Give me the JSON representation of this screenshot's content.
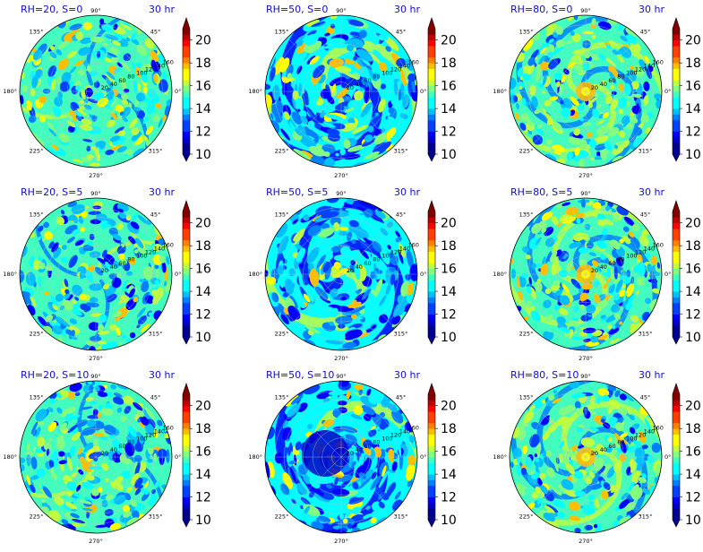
{
  "chart_data": {
    "type": "heatmap",
    "subtype": "polar filled contour",
    "layout": "3 x 3 grid of polar panels, each with its own vertical colorbar",
    "colormap": "jet",
    "colorbar": {
      "min": 10,
      "max": 21,
      "step": 0.5,
      "ticks": [
        10,
        12,
        14,
        16,
        18,
        20
      ],
      "extend": "both"
    },
    "color_levels": [
      "#00008f",
      "#0000c8",
      "#0000ff",
      "#0040ff",
      "#0080ff",
      "#00bfff",
      "#00ffff",
      "#40ffbf",
      "#80ff80",
      "#bfff40",
      "#ffff00",
      "#ffbf00",
      "#ff8000",
      "#ff4000",
      "#ff0000",
      "#c00000",
      "#800000"
    ],
    "theta_ticks": [
      "90°",
      "45°",
      "0°",
      "315°",
      "270°",
      "225°",
      "180°",
      "135°"
    ],
    "radial_ticks": [
      "20",
      "40",
      "60",
      "80",
      "100",
      "120",
      "140",
      "160"
    ],
    "grid": true,
    "panels": [
      {
        "title": "RH=20, S=0",
        "time": "30 hr",
        "rh": 20,
        "s": 0
      },
      {
        "title": "RH=50, S=0",
        "time": "30 hr",
        "rh": 50,
        "s": 0
      },
      {
        "title": "RH=80, S=0",
        "time": "30 hr",
        "rh": 80,
        "s": 0
      },
      {
        "title": "RH=20, S=5",
        "time": "30 hr",
        "rh": 20,
        "s": 5
      },
      {
        "title": "RH=50, S=5",
        "time": "30 hr",
        "rh": 50,
        "s": 5
      },
      {
        "title": "RH=80, S=5",
        "time": "30 hr",
        "rh": 80,
        "s": 5
      },
      {
        "title": "RH=20, S=10",
        "time": "30 hr",
        "rh": 20,
        "s": 10
      },
      {
        "title": "RH=50, S=10",
        "time": "30 hr",
        "rh": 50,
        "s": 10
      },
      {
        "title": "RH=80, S=10",
        "time": "30 hr",
        "rh": 80,
        "s": 10
      }
    ]
  },
  "colors": {
    "title": "#1010c8",
    "text": "#000000",
    "grid": "#bbbbbb"
  }
}
